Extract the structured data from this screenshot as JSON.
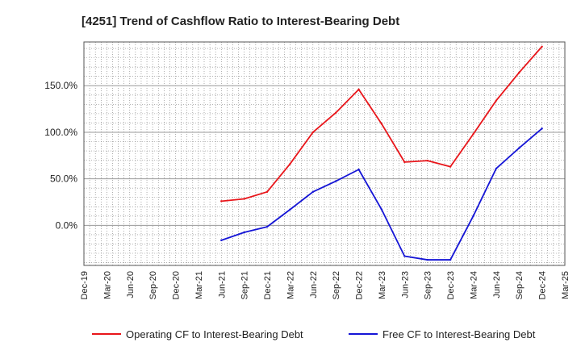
{
  "chart_data": {
    "type": "line",
    "title": "[4251]  Trend of Cashflow Ratio to Interest-Bearing Debt",
    "xlabel": "",
    "ylabel": "",
    "categories": [
      "Dec-19",
      "Mar-20",
      "Jun-20",
      "Sep-20",
      "Dec-20",
      "Mar-21",
      "Jun-21",
      "Sep-21",
      "Dec-21",
      "Mar-22",
      "Jun-22",
      "Sep-22",
      "Dec-22",
      "Mar-23",
      "Jun-23",
      "Sep-23",
      "Dec-23",
      "Mar-24",
      "Jun-24",
      "Sep-24",
      "Dec-24",
      "Mar-25"
    ],
    "y_ticks": [
      0,
      50,
      100,
      150
    ],
    "y_tick_labels": [
      "0.0%",
      "50.0%",
      "100.0%",
      "150.0%"
    ],
    "ylim": [
      -43,
      197
    ],
    "grid": true,
    "legend_position": "bottom",
    "series": [
      {
        "name": "Operating CF to Interest-Bearing Debt",
        "color": "#e8151a",
        "values": [
          null,
          null,
          null,
          null,
          null,
          null,
          26,
          28.5,
          36,
          66,
          100,
          121,
          146,
          109,
          68,
          69.5,
          63,
          98,
          134,
          164,
          192,
          null
        ]
      },
      {
        "name": "Free CF to Interest-Bearing Debt",
        "color": "#1515d6",
        "values": [
          null,
          null,
          null,
          null,
          null,
          null,
          -16,
          -7.5,
          -1.5,
          17,
          36,
          47.5,
          60,
          17,
          -33,
          -37,
          -37,
          10,
          61,
          83,
          104,
          null
        ]
      }
    ]
  }
}
